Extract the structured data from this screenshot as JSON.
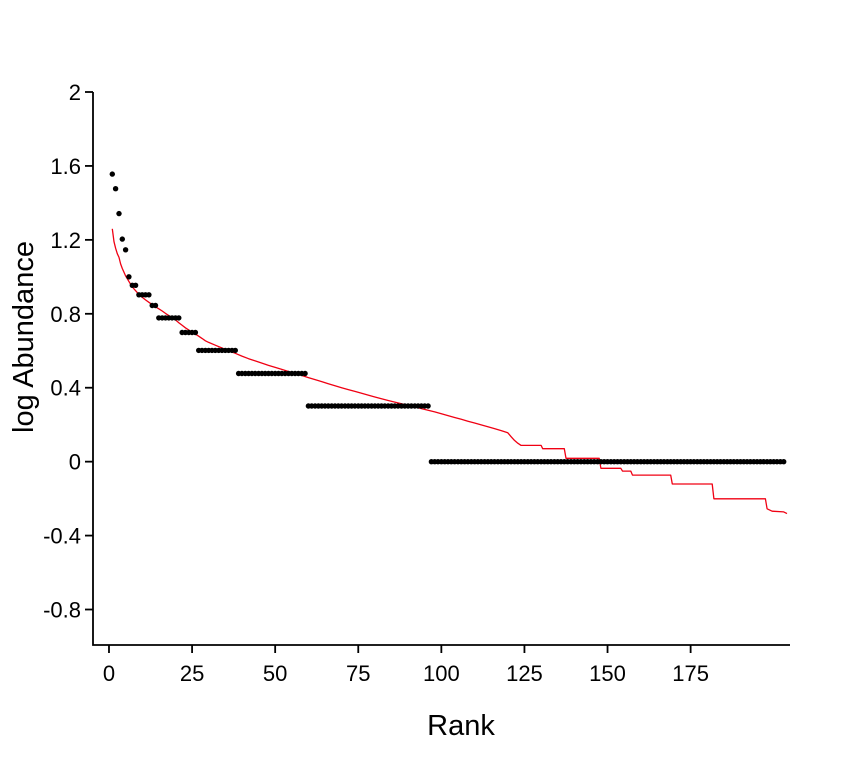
{
  "chart_data": {
    "type": "scatter",
    "title": "",
    "xlabel": "Rank",
    "ylabel": "log Abundance",
    "xlim": [
      -4.81,
      204.9
    ],
    "ylim": [
      -0.992,
      2
    ],
    "xticks": [
      0,
      25,
      50,
      75,
      100,
      125,
      150,
      175
    ],
    "xtick_labels": [
      "0",
      "25",
      "50",
      "75",
      "100",
      "125",
      "150",
      "175"
    ],
    "yticks": [
      2,
      1.6,
      1.2,
      0.8,
      0.4,
      0,
      -0.4,
      -0.8
    ],
    "ytick_labels": [
      "2",
      "1.6",
      "1.2",
      "0.8",
      "0.4",
      "0",
      "-0.4",
      "-0.8"
    ],
    "grid": false,
    "legend": null,
    "axis_color": "#000000",
    "point_color": "#000000",
    "line_color": "#f00013",
    "series": [
      {
        "name": "observed-log-abundance-points",
        "type": "points",
        "runs": [
          {
            "abundance": 36,
            "log_abundance": 1.556,
            "rank_from": 1,
            "rank_to": 1
          },
          {
            "abundance": 30,
            "log_abundance": 1.477,
            "rank_from": 2,
            "rank_to": 2
          },
          {
            "abundance": 22,
            "log_abundance": 1.342,
            "rank_from": 3,
            "rank_to": 3
          },
          {
            "abundance": 16,
            "log_abundance": 1.204,
            "rank_from": 4,
            "rank_to": 4
          },
          {
            "abundance": 14,
            "log_abundance": 1.146,
            "rank_from": 5,
            "rank_to": 5
          },
          {
            "abundance": 10,
            "log_abundance": 1.0,
            "rank_from": 6,
            "rank_to": 6
          },
          {
            "abundance": 9,
            "log_abundance": 0.954,
            "rank_from": 7,
            "rank_to": 8
          },
          {
            "abundance": 8,
            "log_abundance": 0.903,
            "rank_from": 9,
            "rank_to": 12
          },
          {
            "abundance": 7,
            "log_abundance": 0.845,
            "rank_from": 13,
            "rank_to": 14
          },
          {
            "abundance": 6,
            "log_abundance": 0.778,
            "rank_from": 15,
            "rank_to": 21
          },
          {
            "abundance": 5,
            "log_abundance": 0.699,
            "rank_from": 22,
            "rank_to": 26
          },
          {
            "abundance": 4,
            "log_abundance": 0.602,
            "rank_from": 27,
            "rank_to": 38
          },
          {
            "abundance": 3,
            "log_abundance": 0.477,
            "rank_from": 39,
            "rank_to": 59
          },
          {
            "abundance": 2,
            "log_abundance": 0.301,
            "rank_from": 60,
            "rank_to": 96
          },
          {
            "abundance": 1,
            "log_abundance": 0.0,
            "rank_from": 97,
            "rank_to": 203
          }
        ]
      },
      {
        "name": "fitted-model-line",
        "type": "line",
        "points": [
          [
            1,
            1.26
          ],
          [
            1.5,
            1.19
          ],
          [
            2,
            1.155
          ],
          [
            2.5,
            1.125
          ],
          [
            3,
            1.105
          ],
          [
            3.5,
            1.07
          ],
          [
            4,
            1.045
          ],
          [
            5,
            1.005
          ],
          [
            6,
            0.975
          ],
          [
            7,
            0.945
          ],
          [
            8,
            0.925
          ],
          [
            9,
            0.905
          ],
          [
            10,
            0.89
          ],
          [
            11,
            0.875
          ],
          [
            12,
            0.862
          ],
          [
            13,
            0.85
          ],
          [
            14,
            0.838
          ],
          [
            15,
            0.827
          ],
          [
            16,
            0.815
          ],
          [
            17,
            0.802
          ],
          [
            18,
            0.79
          ],
          [
            19,
            0.779
          ],
          [
            20,
            0.767
          ],
          [
            21,
            0.752
          ],
          [
            22,
            0.738
          ],
          [
            23,
            0.724
          ],
          [
            24,
            0.712
          ],
          [
            25,
            0.7
          ],
          [
            26,
            0.69
          ],
          [
            27,
            0.679
          ],
          [
            28,
            0.667
          ],
          [
            29,
            0.654
          ],
          [
            30,
            0.645
          ],
          [
            32,
            0.63
          ],
          [
            34,
            0.615
          ],
          [
            36,
            0.6
          ],
          [
            38,
            0.586
          ],
          [
            40,
            0.571
          ],
          [
            42,
            0.557
          ],
          [
            44,
            0.545
          ],
          [
            46,
            0.533
          ],
          [
            48,
            0.521
          ],
          [
            50,
            0.51
          ],
          [
            52,
            0.499
          ],
          [
            54,
            0.488
          ],
          [
            56,
            0.477
          ],
          [
            58,
            0.466
          ],
          [
            60,
            0.455
          ],
          [
            62,
            0.444
          ],
          [
            64,
            0.433
          ],
          [
            66,
            0.422
          ],
          [
            68,
            0.411
          ],
          [
            70,
            0.4
          ],
          [
            72,
            0.39
          ],
          [
            74,
            0.38
          ],
          [
            76,
            0.37
          ],
          [
            78,
            0.36
          ],
          [
            80,
            0.35
          ],
          [
            82,
            0.34
          ],
          [
            84,
            0.331
          ],
          [
            86,
            0.322
          ],
          [
            88,
            0.313
          ],
          [
            90,
            0.304
          ],
          [
            92,
            0.296
          ],
          [
            94,
            0.287
          ],
          [
            96,
            0.278
          ],
          [
            98,
            0.269
          ],
          [
            100,
            0.259
          ],
          [
            102,
            0.249
          ],
          [
            104,
            0.239
          ],
          [
            106,
            0.229
          ],
          [
            108,
            0.219
          ],
          [
            110,
            0.209
          ],
          [
            112,
            0.199
          ],
          [
            114,
            0.189
          ],
          [
            116,
            0.179
          ],
          [
            118,
            0.168
          ],
          [
            120,
            0.156
          ],
          [
            121,
            0.135
          ],
          [
            122,
            0.115
          ],
          [
            123,
            0.1
          ],
          [
            124,
            0.088
          ],
          [
            130,
            0.088
          ],
          [
            130.5,
            0.07
          ],
          [
            137,
            0.07
          ],
          [
            137.5,
            0.018
          ],
          [
            147.5,
            0.018
          ],
          [
            148,
            -0.036
          ],
          [
            154,
            -0.036
          ],
          [
            154.5,
            -0.051
          ],
          [
            157,
            -0.051
          ],
          [
            157.5,
            -0.073
          ],
          [
            169,
            -0.073
          ],
          [
            169.5,
            -0.121
          ],
          [
            181.5,
            -0.121
          ],
          [
            182,
            -0.201
          ],
          [
            197.5,
            -0.201
          ],
          [
            198,
            -0.255
          ],
          [
            199.5,
            -0.268
          ],
          [
            203,
            -0.272
          ],
          [
            204,
            -0.281
          ]
        ]
      }
    ]
  }
}
